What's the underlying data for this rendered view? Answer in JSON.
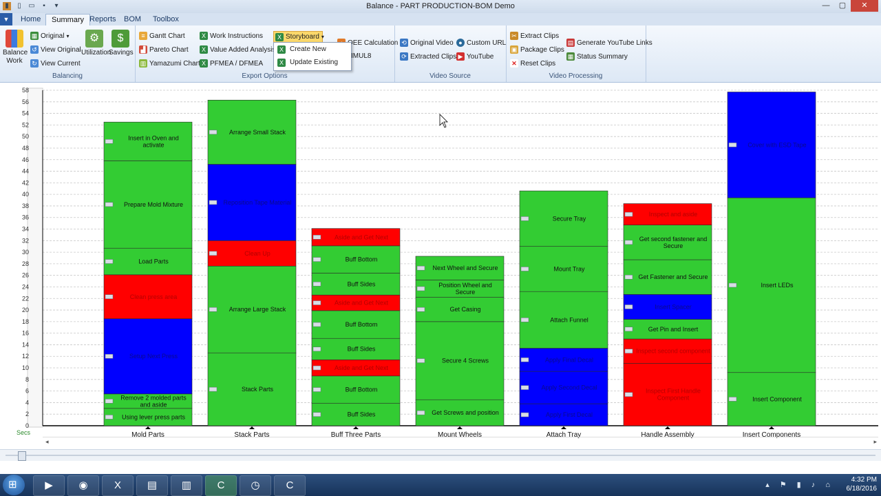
{
  "window": {
    "title": "Balance - PART PRODUCTION-BOM Demo",
    "minimize": "—",
    "maximize": "▢",
    "close": "✕"
  },
  "tabs": [
    {
      "label": "Home"
    },
    {
      "label": "Summary"
    },
    {
      "label": "Reports"
    },
    {
      "label": "BOM"
    },
    {
      "label": "Toolbox"
    }
  ],
  "ribbon": {
    "balancing": {
      "label": "Balancing",
      "balance_work": "Balance\nWork",
      "original": "Original",
      "view_original": "View Original",
      "view_current": "View Current",
      "utilization": "Utilization",
      "savings": "Savings"
    },
    "export": {
      "label": "Export Options",
      "gantt": "Gantt Chart",
      "pareto": "Pareto Chart",
      "yamazumi": "Yamazumi Chart",
      "work_instructions": "Work Instructions",
      "value_added": "Value Added Analysis",
      "pfmea": "PFMEA / DFMEA",
      "storyboard": "Storyboard",
      "oee": "OEE Calculation",
      "simul8": "IMUL8",
      "menu": {
        "create_new": "Create New",
        "update_existing": "Update Existing"
      }
    },
    "video_source": {
      "label": "Video Source",
      "original_video": "Original Video",
      "extracted_clips": "Extracted Clips",
      "custom_url": "Custom URL",
      "youtube": "YouTube"
    },
    "video_processing": {
      "label": "Video Processing",
      "extract_clips": "Extract Clips",
      "package_clips": "Package Clips",
      "reset_clips": "Reset Clips",
      "gen_youtube": "Generate YouTube Links",
      "status_summary": "Status Summary"
    }
  },
  "taskbar": {
    "time": "4:32 PM",
    "date": "6/18/2016"
  },
  "colors": {
    "va": "#33cc33",
    "nva": "#ff0000",
    "nnva": "#0000ff"
  },
  "chart_data": {
    "type": "bar",
    "stacked": true,
    "ylabel": "Secs",
    "ylim": [
      0,
      58
    ],
    "yticks": [
      0,
      2,
      4,
      6,
      8,
      10,
      12,
      14,
      16,
      18,
      20,
      22,
      24,
      26,
      28,
      30,
      32,
      34,
      36,
      38,
      40,
      42,
      44,
      46,
      48,
      50,
      52,
      54,
      56,
      58
    ],
    "grid": true,
    "categories": [
      "Mold Parts",
      "Stack Parts",
      "Buff Three Parts",
      "Mount Wheels",
      "Attach Tray",
      "Handle Assembly",
      "Insert Components"
    ],
    "stacks": [
      [
        {
          "label": "Using lever press parts",
          "value": 3.0,
          "type": "va"
        },
        {
          "label": "Remove 2 molded parts and aside",
          "value": 2.5,
          "type": "va"
        },
        {
          "label": "Setup Next Press",
          "value": 13.0,
          "type": "nnva"
        },
        {
          "label": "Clean press area",
          "value": 7.6,
          "type": "nva"
        },
        {
          "label": "Load Parts",
          "value": 4.6,
          "type": "va"
        },
        {
          "label": "Prepare Mold Mixture",
          "value": 15.1,
          "type": "va"
        },
        {
          "label": "Insert in Oven and activate",
          "value": 6.7,
          "type": "va"
        }
      ],
      [
        {
          "label": "Stack Parts",
          "value": 12.6,
          "type": "va"
        },
        {
          "label": "Arrange Large Stack",
          "value": 15.0,
          "type": "va"
        },
        {
          "label": "Clean Up",
          "value": 4.4,
          "type": "nva"
        },
        {
          "label": "Reposition Tape Material",
          "value": 13.2,
          "type": "nnva"
        },
        {
          "label": "Arrange Small Stack",
          "value": 11.1,
          "type": "va"
        }
      ],
      [
        {
          "label": "Buff Sides",
          "value": 3.9,
          "type": "va"
        },
        {
          "label": "Buff Bottom",
          "value": 4.7,
          "type": "va"
        },
        {
          "label": "Aside and Get Next",
          "value": 2.8,
          "type": "nva"
        },
        {
          "label": "Buff Sides",
          "value": 3.7,
          "type": "va"
        },
        {
          "label": "Buff Bottom",
          "value": 4.8,
          "type": "va"
        },
        {
          "label": "Aside and Get Next",
          "value": 2.7,
          "type": "nva"
        },
        {
          "label": "Buff Sides",
          "value": 3.8,
          "type": "va"
        },
        {
          "label": "Buff Bottom",
          "value": 4.7,
          "type": "va"
        },
        {
          "label": "Aside and Get Next",
          "value": 3.0,
          "type": "nva"
        }
      ],
      [
        {
          "label": "Get Screws and position",
          "value": 4.5,
          "type": "va"
        },
        {
          "label": "Secure 4 Screws",
          "value": 13.5,
          "type": "va"
        },
        {
          "label": "Get Casing",
          "value": 4.2,
          "type": "va"
        },
        {
          "label": "Position Wheel and Secure",
          "value": 3.0,
          "type": "va"
        },
        {
          "label": "Next Wheel and Secure",
          "value": 4.1,
          "type": "va"
        }
      ],
      [
        {
          "label": "Apply First Decal",
          "value": 3.8,
          "type": "nnva"
        },
        {
          "label": "Apply Second Decal",
          "value": 5.6,
          "type": "nnva"
        },
        {
          "label": "Apply Final Decal",
          "value": 4.0,
          "type": "nnva"
        },
        {
          "label": "Attach Funnel",
          "value": 9.8,
          "type": "va"
        },
        {
          "label": "Mount Tray",
          "value": 7.8,
          "type": "va"
        },
        {
          "label": "Secure Tray",
          "value": 9.6,
          "type": "va"
        }
      ],
      [
        {
          "label": "Inspect First Handle Component",
          "value": 10.8,
          "type": "nva"
        },
        {
          "label": "Inspect second component",
          "value": 4.2,
          "type": "nva"
        },
        {
          "label": "Get Pin and Insert",
          "value": 3.4,
          "type": "va"
        },
        {
          "label": "Insert Spacer",
          "value": 4.3,
          "type": "nnva"
        },
        {
          "label": "Get Fastener and Secure",
          "value": 6.0,
          "type": "va"
        },
        {
          "label": "Get second fastener and Secure",
          "value": 6.0,
          "type": "va"
        },
        {
          "label": "Inspect and aside",
          "value": 3.7,
          "type": "nva"
        }
      ],
      [
        {
          "label": "Insert Component",
          "value": 9.2,
          "type": "va"
        },
        {
          "label": "Insert LEDs",
          "value": 30.2,
          "type": "va"
        },
        {
          "label": "Cover with ESD Tape",
          "value": 18.3,
          "type": "nnva"
        }
      ]
    ]
  }
}
